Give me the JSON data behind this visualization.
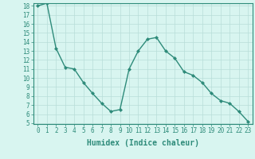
{
  "xlabel": "Humidex (Indice chaleur)",
  "x": [
    0,
    1,
    2,
    3,
    4,
    5,
    6,
    7,
    8,
    9,
    10,
    11,
    12,
    13,
    14,
    15,
    16,
    17,
    18,
    19,
    20,
    21,
    22,
    23
  ],
  "y": [
    18.0,
    18.3,
    13.3,
    11.2,
    11.0,
    9.5,
    8.3,
    7.2,
    6.3,
    6.5,
    11.0,
    13.0,
    14.3,
    14.5,
    13.0,
    12.2,
    10.7,
    10.3,
    9.5,
    8.3,
    7.5,
    7.2,
    6.3,
    5.2
  ],
  "line_color": "#2e8b7a",
  "marker": "D",
  "marker_size": 2,
  "bg_color": "#d8f5f0",
  "grid_color": "#b8ddd8",
  "ylim": [
    5,
    18
  ],
  "xlim": [
    -0.5,
    23.5
  ],
  "yticks": [
    5,
    6,
    7,
    8,
    9,
    10,
    11,
    12,
    13,
    14,
    15,
    16,
    17,
    18
  ],
  "xticks": [
    0,
    1,
    2,
    3,
    4,
    5,
    6,
    7,
    8,
    9,
    10,
    11,
    12,
    13,
    14,
    15,
    16,
    17,
    18,
    19,
    20,
    21,
    22,
    23
  ],
  "tick_fontsize": 5.5,
  "label_fontsize": 7,
  "line_width": 1.0
}
